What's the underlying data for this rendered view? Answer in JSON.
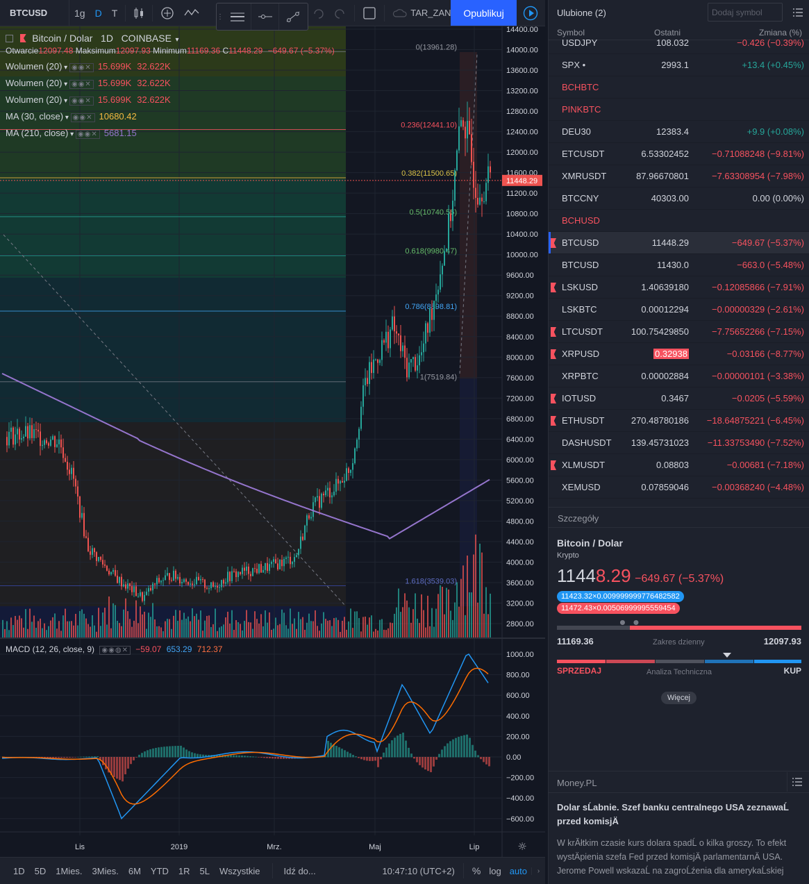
{
  "topbar": {
    "symbol": "BTCUSD",
    "interval_1": "1g",
    "interval_2": "D",
    "interval_3": "T",
    "template_label": "TAR_ZAN",
    "publish_label": "Opublikuj"
  },
  "legend": {
    "title": "Bitcoin / Dolar",
    "interval": "1D",
    "exchange": "COINBASE",
    "open_label": "Otwarcie",
    "open": "12097.48",
    "high_label": "Maksimum",
    "high": "12097.93",
    "low_label": "Minimum",
    "low": "11169.36",
    "close_label": "C",
    "close": "11448.29",
    "change": "−649.67 (−5.37%)",
    "indicators": [
      {
        "name": "Wolumen (20)",
        "v1": "15.699K",
        "v2": "32.622K"
      },
      {
        "name": "Wolumen (20)",
        "v1": "15.699K",
        "v2": "32.622K"
      },
      {
        "name": "Wolumen (20)",
        "v1": "15.699K",
        "v2": "32.622K"
      },
      {
        "name": "MA (30, close)",
        "v1": "10680.42"
      },
      {
        "name": "MA (210, close)",
        "v1": "5681.15"
      }
    ],
    "macd": {
      "name": "MACD (12, 26, close, 9)",
      "v1": "−59.07",
      "v2": "653.29",
      "v3": "712.37"
    }
  },
  "chart_data": {
    "type": "candlestick",
    "price_axis": [
      "14400.00",
      "14000.00",
      "13600.00",
      "13200.00",
      "12800.00",
      "12400.00",
      "12000.00",
      "11600.00",
      "11200.00",
      "10800.00",
      "10400.00",
      "10000.00",
      "9600.00",
      "9200.00",
      "8800.00",
      "8400.00",
      "8000.00",
      "7600.00",
      "7200.00",
      "6800.00",
      "6400.00",
      "6000.00",
      "5600.00",
      "5200.00",
      "4800.00",
      "4400.00",
      "4000.00",
      "3600.00",
      "3200.00",
      "2800.00"
    ],
    "macd_axis": [
      "1000.00",
      "800.00",
      "600.00",
      "400.00",
      "200.00",
      "0.00",
      "−200.00",
      "−400.00",
      "−600.00"
    ],
    "time_axis": [
      "Lis",
      "2019",
      "Mrz.",
      "Maj",
      "Lip"
    ],
    "last_price": "11448.29",
    "fib_levels": [
      {
        "label": "0(13961.28)",
        "price": 13961.28
      },
      {
        "label": "0.236(12441.10)",
        "price": 12441.1
      },
      {
        "label": "0.382(11500.65)",
        "price": 11500.65
      },
      {
        "label": "0.5(10740.56)",
        "price": 10740.56
      },
      {
        "label": "0.618(9980.47)",
        "price": 9980.47
      },
      {
        "label": "0.786(8898.81)",
        "price": 8898.81
      },
      {
        "label": "1(7519.84)",
        "price": 7519.84
      },
      {
        "label": "1.618(3539.03)",
        "price": 3539.03
      }
    ],
    "close_series": [
      6450,
      6500,
      6480,
      6420,
      6350,
      5600,
      4300,
      4000,
      3700,
      3500,
      3300,
      3600,
      3750,
      3650,
      3600,
      3500,
      3700,
      3800,
      3850,
      3900,
      4000,
      4100,
      5000,
      5300,
      5500,
      5900,
      7500,
      8100,
      8600,
      7800,
      8000,
      9200,
      10500,
      12800,
      11300,
      11448
    ]
  },
  "bottombar": {
    "ranges": [
      "1D",
      "5D",
      "1Mies.",
      "3Mies.",
      "6M",
      "YTD",
      "1R",
      "5L",
      "Wszystkie"
    ],
    "goto": "Idź do...",
    "time": "10:47:10 (UTC+2)",
    "pct": "%",
    "log": "log",
    "auto": "auto"
  },
  "watchlist": {
    "title": "Ulubione (2)",
    "add_symbol": "Dodaj symbol",
    "col_symbol": "Symbol",
    "col_last": "Ostatni",
    "col_change": "Zmiana (%)",
    "rows": [
      {
        "symbol": "USDJPY",
        "last": "108.032",
        "change": "−0.426 (−0.39%)",
        "dir": "dn"
      },
      {
        "symbol": "SPX •",
        "last": "2993.1",
        "change": "+13.4 (+0.45%)",
        "dir": "up"
      },
      {
        "symbol": "BCHBTC",
        "section": true
      },
      {
        "symbol": "PINKBTC",
        "section": true
      },
      {
        "symbol": "DEU30",
        "last": "12383.4",
        "change": "+9.9 (+0.08%)",
        "dir": "up"
      },
      {
        "symbol": "ETCUSDT",
        "last": "6.53302452",
        "change": "−0.71088248 (−9.81%)",
        "dir": "dn"
      },
      {
        "symbol": "XMRUSDT",
        "last": "87.96670801",
        "change": "−7.63308954 (−7.98%)",
        "dir": "dn"
      },
      {
        "symbol": "BTCCNY",
        "last": "40303.00",
        "change": "0.00 (0.00%)",
        "dir": "flat"
      },
      {
        "symbol": "BCHUSD",
        "section": true
      },
      {
        "symbol": "BTCUSD",
        "last": "11448.29",
        "change": "−649.67 (−5.37%)",
        "dir": "dn",
        "flag": true,
        "selected": true
      },
      {
        "symbol": "BTCUSD",
        "last": "11430.0",
        "change": "−663.0 (−5.48%)",
        "dir": "dn"
      },
      {
        "symbol": "LSKUSD",
        "last": "1.40639180",
        "change": "−0.12085866 (−7.91%)",
        "dir": "dn",
        "flag": true
      },
      {
        "symbol": "LSKBTC",
        "last": "0.00012294",
        "change": "−0.00000329 (−2.61%)",
        "dir": "dn"
      },
      {
        "symbol": "LTCUSDT",
        "last": "100.75429850",
        "change": "−7.75652266 (−7.15%)",
        "dir": "dn",
        "flag": true
      },
      {
        "symbol": "XRPUSD",
        "last": "0.32938",
        "change": "−0.03166 (−8.77%)",
        "dir": "dn",
        "flag": true,
        "highlight": true
      },
      {
        "symbol": "XRPBTC",
        "last": "0.00002884",
        "change": "−0.00000101 (−3.38%)",
        "dir": "dn"
      },
      {
        "symbol": "IOTUSD",
        "last": "0.3467",
        "change": "−0.0205 (−5.59%)",
        "dir": "dn",
        "flag": true
      },
      {
        "symbol": "ETHUSDT",
        "last": "270.48780186",
        "change": "−18.64875221 (−6.45%)",
        "dir": "dn",
        "flag": true
      },
      {
        "symbol": "DASHUSDT",
        "last": "139.45731023",
        "change": "−11.33753490 (−7.52%)",
        "dir": "dn"
      },
      {
        "symbol": "XLMUSDT",
        "last": "0.08803",
        "change": "−0.00681 (−7.18%)",
        "dir": "dn",
        "flag": true
      },
      {
        "symbol": "XEMUSD",
        "last": "0.07859046",
        "change": "−0.00368240 (−4.48%)",
        "dir": "dn"
      }
    ]
  },
  "details": {
    "title": "Szczegóły",
    "name": "Bitcoin / Dolar",
    "type": "Krypto",
    "price_main": "1144",
    "price_tail": "8.29",
    "change": "−649.67 (−5.37%)",
    "bid": "11423.32×0.009999999776482582",
    "ask": "11472.43×0.00506999995559454",
    "range_low": "11169.36",
    "range_label": "Zakres dzienny",
    "range_high": "12097.93",
    "sell": "SPRZEDAJ",
    "ta_label": "Analiza Techniczna",
    "buy": "KUP",
    "more": "Więcej"
  },
  "news": {
    "source": "Money.PL",
    "headline": "Dolar sĹabnie. Szef banku centralnego USA zeznawaĹ przed komisjÄ",
    "body": "W krĂłtkim czasie kurs dolara spadĹ o kilka groszy. To efekt wystÄpienia szefa Fed przed komisjÄ parlamentarnÄ USA. Jerome Powell wskazaĹ na zagroĹźenia dla amerykaĹskiej"
  },
  "colors": {
    "up": "#26a69a",
    "down": "#ef5350",
    "accent": "#2962ff",
    "ma30": "#f5b841",
    "ma210": "#9575cd"
  }
}
